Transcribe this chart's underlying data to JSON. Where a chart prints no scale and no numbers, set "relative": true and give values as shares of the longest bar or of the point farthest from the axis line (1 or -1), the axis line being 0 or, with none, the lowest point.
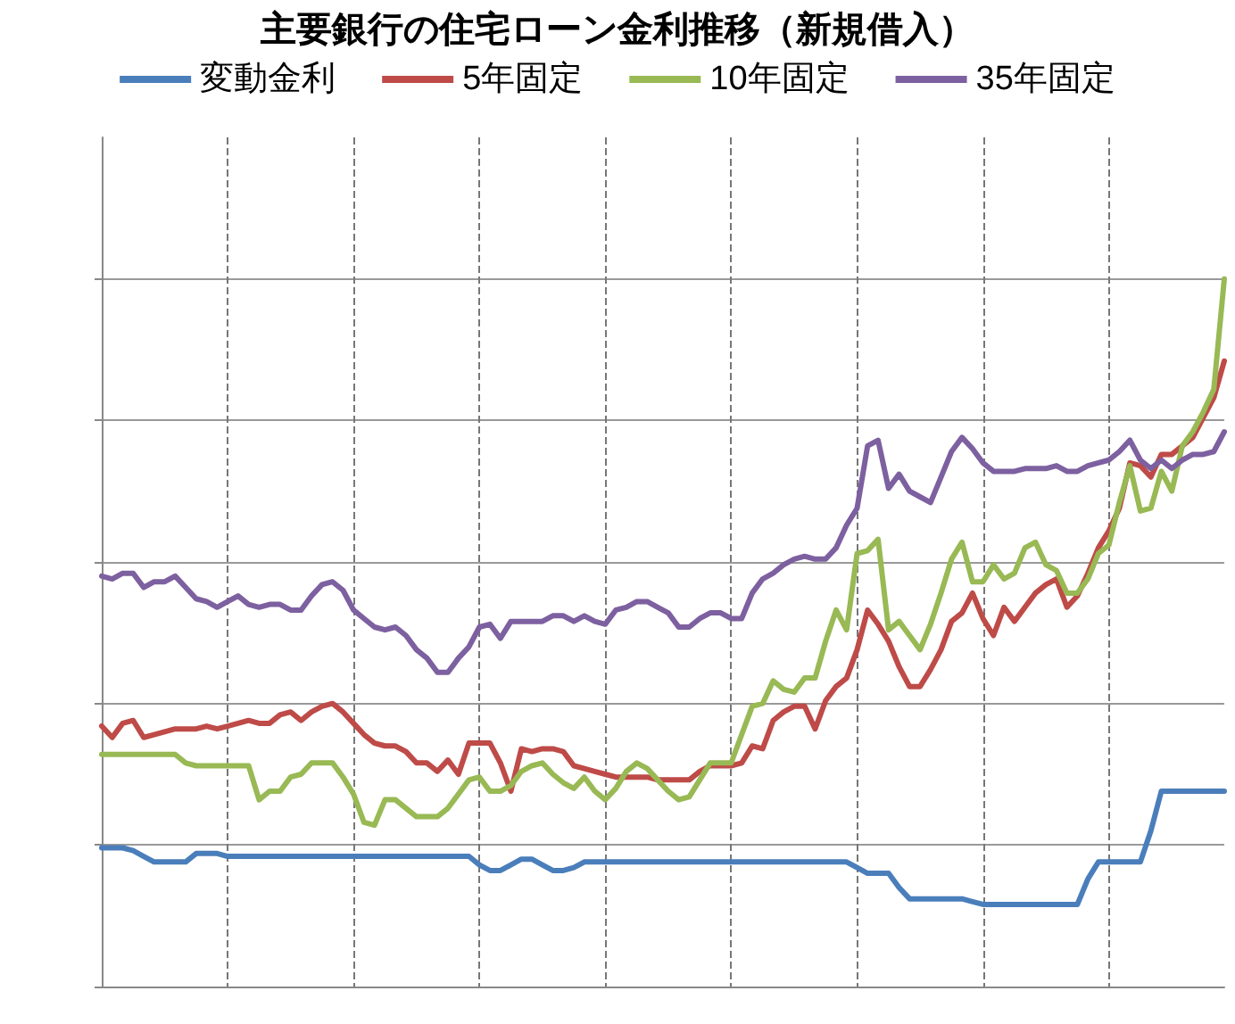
{
  "chart_data": {
    "type": "line",
    "title": "主要銀行の住宅ローン金利推移（新規借入）",
    "relative": true,
    "categories": [
      null,
      null,
      null,
      null,
      null,
      null,
      null,
      null,
      null,
      null,
      null,
      null,
      null,
      null,
      null,
      null,
      null,
      null,
      null,
      null,
      null,
      null,
      null,
      null,
      null,
      null,
      null,
      null,
      null,
      null,
      null,
      null,
      null,
      null,
      null,
      null,
      null,
      null,
      null,
      null,
      null,
      null,
      null,
      null,
      null,
      null,
      null,
      null,
      null,
      null,
      null,
      null,
      null,
      null,
      null,
      null,
      null,
      null,
      null,
      null,
      null,
      null,
      null,
      null,
      null,
      null,
      null,
      null,
      null,
      null,
      null,
      null,
      null,
      null,
      null,
      null,
      null,
      null,
      null,
      null,
      null,
      null,
      null,
      null,
      null,
      null,
      null,
      null,
      null,
      null,
      null,
      null,
      null,
      null,
      null,
      null,
      null,
      null,
      null,
      null,
      null,
      null,
      null,
      null,
      null,
      null,
      null,
      null
    ],
    "series": [
      {
        "name": "変動金利",
        "color": "#4a7ebb",
        "values": [
          0.196,
          0.196,
          0.196,
          0.192,
          0.184,
          0.176,
          0.176,
          0.176,
          0.176,
          0.188,
          0.188,
          0.188,
          0.184,
          0.184,
          0.184,
          0.184,
          0.184,
          0.184,
          0.184,
          0.184,
          0.184,
          0.184,
          0.184,
          0.184,
          0.184,
          0.184,
          0.184,
          0.184,
          0.184,
          0.184,
          0.184,
          0.184,
          0.184,
          0.184,
          0.184,
          0.184,
          0.172,
          0.164,
          0.164,
          0.172,
          0.18,
          0.18,
          0.172,
          0.164,
          0.164,
          0.168,
          0.176,
          0.176,
          0.176,
          0.176,
          0.176,
          0.176,
          0.176,
          0.176,
          0.176,
          0.176,
          0.176,
          0.176,
          0.176,
          0.176,
          0.176,
          0.176,
          0.176,
          0.176,
          0.176,
          0.176,
          0.176,
          0.176,
          0.176,
          0.176,
          0.176,
          0.176,
          0.168,
          0.16,
          0.16,
          0.16,
          0.14,
          0.124,
          0.124,
          0.124,
          0.124,
          0.124,
          0.124,
          0.12,
          0.116,
          0.116,
          0.116,
          0.116,
          0.116,
          0.116,
          0.116,
          0.116,
          0.116,
          0.116,
          0.152,
          0.176,
          0.176,
          0.176,
          0.176,
          0.176,
          0.22,
          0.276,
          0.276,
          0.276,
          0.276,
          0.276,
          0.276,
          0.276
        ]
      },
      {
        "name": "5年固定",
        "color": "#be4b48",
        "values": [
          0.368,
          0.352,
          0.372,
          0.376,
          0.352,
          0.356,
          0.36,
          0.364,
          0.364,
          0.364,
          0.368,
          0.364,
          0.368,
          0.372,
          0.376,
          0.372,
          0.372,
          0.384,
          0.388,
          0.376,
          0.388,
          0.396,
          0.4,
          0.388,
          0.372,
          0.356,
          0.344,
          0.34,
          0.34,
          0.332,
          0.316,
          0.316,
          0.304,
          0.32,
          0.3,
          0.344,
          0.344,
          0.344,
          0.316,
          0.276,
          0.336,
          0.332,
          0.336,
          0.336,
          0.332,
          0.312,
          0.308,
          0.304,
          0.3,
          0.296,
          0.296,
          0.296,
          0.296,
          0.292,
          0.292,
          0.292,
          0.292,
          0.304,
          0.312,
          0.312,
          0.312,
          0.316,
          0.34,
          0.336,
          0.376,
          0.388,
          0.396,
          0.396,
          0.364,
          0.404,
          0.424,
          0.436,
          0.476,
          0.532,
          0.512,
          0.488,
          0.452,
          0.424,
          0.424,
          0.448,
          0.476,
          0.516,
          0.528,
          0.556,
          0.52,
          0.496,
          0.536,
          0.516,
          0.536,
          0.556,
          0.568,
          0.576,
          0.536,
          0.552,
          0.584,
          0.62,
          0.644,
          0.676,
          0.74,
          0.736,
          0.72,
          0.752,
          0.752,
          0.764,
          0.776,
          0.804,
          0.832,
          0.884
        ]
      },
      {
        "name": "10年固定",
        "color": "#98b954",
        "values": [
          0.328,
          0.328,
          0.328,
          0.328,
          0.328,
          0.328,
          0.328,
          0.328,
          0.316,
          0.312,
          0.312,
          0.312,
          0.312,
          0.312,
          0.312,
          0.264,
          0.276,
          0.276,
          0.296,
          0.3,
          0.316,
          0.316,
          0.316,
          0.296,
          0.272,
          0.232,
          0.228,
          0.264,
          0.264,
          0.252,
          0.24,
          0.24,
          0.24,
          0.252,
          0.272,
          0.292,
          0.296,
          0.276,
          0.276,
          0.284,
          0.304,
          0.312,
          0.316,
          0.3,
          0.288,
          0.28,
          0.296,
          0.276,
          0.264,
          0.28,
          0.304,
          0.316,
          0.308,
          0.292,
          0.276,
          0.264,
          0.268,
          0.292,
          0.316,
          0.316,
          0.316,
          0.356,
          0.396,
          0.4,
          0.432,
          0.42,
          0.416,
          0.436,
          0.436,
          0.488,
          0.532,
          0.504,
          0.612,
          0.616,
          0.632,
          0.504,
          0.516,
          0.496,
          0.476,
          0.512,
          0.556,
          0.604,
          0.628,
          0.572,
          0.572,
          0.596,
          0.576,
          0.584,
          0.62,
          0.628,
          0.596,
          0.588,
          0.556,
          0.556,
          0.576,
          0.612,
          0.624,
          0.684,
          0.736,
          0.672,
          0.676,
          0.728,
          0.7,
          0.764,
          0.784,
          0.812,
          0.844,
          1
        ]
      },
      {
        "name": "35年固定",
        "color": "#7d60a0",
        "values": [
          0.58,
          0.576,
          0.584,
          0.584,
          0.564,
          0.572,
          0.572,
          0.58,
          0.564,
          0.548,
          0.544,
          0.536,
          0.544,
          0.552,
          0.54,
          0.536,
          0.54,
          0.54,
          0.532,
          0.532,
          0.552,
          0.568,
          0.572,
          0.56,
          0.532,
          0.52,
          0.508,
          0.504,
          0.508,
          0.496,
          0.476,
          0.464,
          0.444,
          0.444,
          0.464,
          0.48,
          0.508,
          0.512,
          0.492,
          0.516,
          0.516,
          0.516,
          0.516,
          0.524,
          0.524,
          0.516,
          0.524,
          0.516,
          0.512,
          0.532,
          0.536,
          0.544,
          0.544,
          0.536,
          0.528,
          0.508,
          0.508,
          0.52,
          0.528,
          0.528,
          0.52,
          0.52,
          0.556,
          0.576,
          0.584,
          0.596,
          0.604,
          0.608,
          0.604,
          0.604,
          0.62,
          0.652,
          0.676,
          0.764,
          0.772,
          0.704,
          0.724,
          0.7,
          0.692,
          0.684,
          0.72,
          0.756,
          0.776,
          0.76,
          0.74,
          0.728,
          0.728,
          0.728,
          0.732,
          0.732,
          0.732,
          0.736,
          0.728,
          0.728,
          0.736,
          0.74,
          0.744,
          0.756,
          0.772,
          0.744,
          0.732,
          0.744,
          0.732,
          0.744,
          0.752,
          0.752,
          0.756,
          0.784
        ]
      }
    ],
    "grid": true,
    "legend": "top",
    "marker": "none",
    "line_style": "solid"
  }
}
